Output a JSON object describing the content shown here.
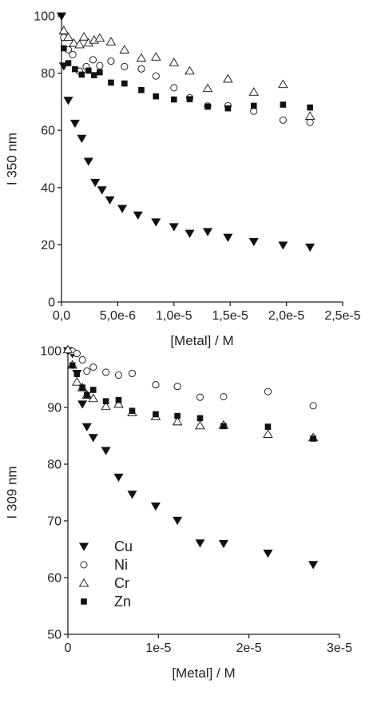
{
  "chart_data": [
    {
      "type": "scatter",
      "xlabel": "[Metal] / M",
      "ylabel": "I 350 nm",
      "xlim": [
        0,
        2.5e-05
      ],
      "ylim": [
        0,
        100
      ],
      "xticks": [
        0,
        5e-06,
        1e-05,
        1.5e-05,
        2e-05,
        2.5e-05
      ],
      "xtick_labels": [
        "0,0",
        "5,0e-6",
        "1,0e-5",
        "1,5e-5",
        "2,0e-5",
        "2,5e-5"
      ],
      "yticks": [
        0,
        20,
        40,
        60,
        80,
        100
      ],
      "ytick_labels": [
        "0",
        "20",
        "40",
        "60",
        "80",
        "100"
      ],
      "grid": false,
      "series": [
        {
          "name": "Cu",
          "marker": "triangle-down-filled",
          "color": "#111111",
          "points": [
            [
              0,
              100
            ],
            [
              2e-07,
              82.5
            ],
            [
              6e-07,
              70.5
            ],
            [
              1.2e-06,
              62.5
            ],
            [
              1.8e-06,
              57.2
            ],
            [
              2.4e-06,
              49.2
            ],
            [
              3e-06,
              41.8
            ],
            [
              3.6e-06,
              39.2
            ],
            [
              4.3e-06,
              35.7
            ],
            [
              5.4e-06,
              32.7
            ],
            [
              6.8e-06,
              30.4
            ],
            [
              8.4e-06,
              28
            ],
            [
              1e-05,
              26.3
            ],
            [
              1.14e-05,
              24
            ],
            [
              1.3e-05,
              24.6
            ],
            [
              1.48e-05,
              22.6
            ],
            [
              1.71e-05,
              21.1
            ],
            [
              1.97e-05,
              19.9
            ],
            [
              2.21e-05,
              19.2
            ]
          ]
        },
        {
          "name": "Ni",
          "marker": "circle-open",
          "color": "#111111",
          "points": [
            [
              2e-07,
              92.5
            ],
            [
              6e-07,
              88.2
            ],
            [
              1e-06,
              86.5
            ],
            [
              1.6e-06,
              80.7
            ],
            [
              2.2e-06,
              82.3
            ],
            [
              2.8e-06,
              84.7
            ],
            [
              3.4e-06,
              82.6
            ],
            [
              4.4e-06,
              84.2
            ],
            [
              5.6e-06,
              82.3
            ],
            [
              7.1e-06,
              81.5
            ],
            [
              8.4e-06,
              79
            ],
            [
              1e-05,
              74.9
            ],
            [
              1.14e-05,
              71.4
            ],
            [
              1.3e-05,
              68.5
            ],
            [
              1.48e-05,
              68.6
            ],
            [
              1.71e-05,
              66.7
            ],
            [
              1.97e-05,
              63.6
            ],
            [
              2.21e-05,
              62.8
            ]
          ]
        },
        {
          "name": "Cr",
          "marker": "triangle-up-open",
          "color": "#111111",
          "points": [
            [
              2e-07,
              94.9
            ],
            [
              6e-07,
              92.6
            ],
            [
              1.1e-06,
              90.5
            ],
            [
              1.6e-06,
              90
            ],
            [
              2e-06,
              92.7
            ],
            [
              2.4e-06,
              90.6
            ],
            [
              2.9e-06,
              91.6
            ],
            [
              3.4e-06,
              92.3
            ],
            [
              4.4e-06,
              91
            ],
            [
              5.6e-06,
              88.2
            ],
            [
              7.1e-06,
              85.3
            ],
            [
              8.4e-06,
              85.7
            ],
            [
              1e-05,
              83.7
            ],
            [
              1.14e-05,
              80.8
            ],
            [
              1.3e-05,
              74.7
            ],
            [
              1.48e-05,
              78
            ],
            [
              1.71e-05,
              73.4
            ],
            [
              1.97e-05,
              76.1
            ],
            [
              2.21e-05,
              65
            ]
          ]
        },
        {
          "name": "Zn",
          "marker": "square-filled",
          "color": "#111111",
          "points": [
            [
              2e-07,
              88.7
            ],
            [
              6e-07,
              83.5
            ],
            [
              1.2e-06,
              81.4
            ],
            [
              1.8e-06,
              79.5
            ],
            [
              2.4e-06,
              80.9
            ],
            [
              2.9e-06,
              79.3
            ],
            [
              3.4e-06,
              80.3
            ],
            [
              4.4e-06,
              76.7
            ],
            [
              5.6e-06,
              76.4
            ],
            [
              7.1e-06,
              74.1
            ],
            [
              8.4e-06,
              71.9
            ],
            [
              1e-05,
              70.8
            ],
            [
              1.14e-05,
              70.9
            ],
            [
              1.3e-05,
              68.3
            ],
            [
              1.48e-05,
              67.7
            ],
            [
              1.71e-05,
              68.6
            ],
            [
              1.97e-05,
              69
            ],
            [
              2.21e-05,
              68
            ]
          ]
        }
      ]
    },
    {
      "type": "scatter",
      "xlabel": "[Metal] / M",
      "ylabel": "I 309 nm",
      "xlim": [
        0,
        3e-05
      ],
      "ylim": [
        50,
        100
      ],
      "xticks": [
        0,
        1e-05,
        2e-05,
        3e-05
      ],
      "xtick_labels": [
        "0",
        "1e-5",
        "2e-5",
        "3e-5"
      ],
      "yticks": [
        50,
        60,
        70,
        80,
        90,
        100
      ],
      "ytick_labels": [
        "50",
        "60",
        "70",
        "80",
        "90",
        "100"
      ],
      "grid": false,
      "legend": {
        "position": "bottom-left",
        "entries": [
          {
            "label": "Cu",
            "marker": "triangle-down-filled"
          },
          {
            "label": "Ni",
            "marker": "circle-open"
          },
          {
            "label": "Cr",
            "marker": "triangle-up-open"
          },
          {
            "label": "Zn",
            "marker": "square-filled"
          }
        ]
      },
      "series": [
        {
          "name": "Cu",
          "marker": "triangle-down-filled",
          "color": "#111111",
          "points": [
            [
              0,
              100
            ],
            [
              5e-07,
              99.5
            ],
            [
              1e-06,
              96
            ],
            [
              1.6e-06,
              90.6
            ],
            [
              2.1e-06,
              86.6
            ],
            [
              2.8e-06,
              84.7
            ],
            [
              4.2e-06,
              82.4
            ],
            [
              5.6e-06,
              77.7
            ],
            [
              7.1e-06,
              74.7
            ],
            [
              9.7e-06,
              72.6
            ],
            [
              1.21e-05,
              70.1
            ],
            [
              1.46e-05,
              66.1
            ],
            [
              1.72e-05,
              66
            ],
            [
              2.21e-05,
              64.3
            ],
            [
              2.71e-05,
              62.3
            ]
          ]
        },
        {
          "name": "Ni",
          "marker": "circle-open",
          "color": "#111111",
          "points": [
            [
              0,
              100.1
            ],
            [
              5e-07,
              99.9
            ],
            [
              1e-06,
              99.5
            ],
            [
              1.6e-06,
              98.4
            ],
            [
              2.1e-06,
              96.4
            ],
            [
              2.8e-06,
              97.1
            ],
            [
              4.2e-06,
              96.2
            ],
            [
              5.6e-06,
              95.7
            ],
            [
              7.1e-06,
              96
            ],
            [
              9.7e-06,
              94
            ],
            [
              1.21e-05,
              93.7
            ],
            [
              1.46e-05,
              91.8
            ],
            [
              1.72e-05,
              91.9
            ],
            [
              2.21e-05,
              92.8
            ],
            [
              2.71e-05,
              90.3
            ]
          ]
        },
        {
          "name": "Cr",
          "marker": "triangle-up-open",
          "color": "#111111",
          "points": [
            [
              0,
              100.2
            ],
            [
              5e-07,
              97.5
            ],
            [
              1e-06,
              94.5
            ],
            [
              1.6e-06,
              93.5
            ],
            [
              2.1e-06,
              92.2
            ],
            [
              2.8e-06,
              91.6
            ],
            [
              4.2e-06,
              90.2
            ],
            [
              5.6e-06,
              90.6
            ],
            [
              7.1e-06,
              89.1
            ],
            [
              9.7e-06,
              88.4
            ],
            [
              1.21e-05,
              87.5
            ],
            [
              1.46e-05,
              86.8
            ],
            [
              1.72e-05,
              86.9
            ],
            [
              2.21e-05,
              85.3
            ],
            [
              2.71e-05,
              84.7
            ]
          ]
        },
        {
          "name": "Zn",
          "marker": "square-filled",
          "color": "#111111",
          "points": [
            [
              5e-07,
              97.4
            ],
            [
              1e-06,
              95.9
            ],
            [
              1.6e-06,
              93.5
            ],
            [
              2.1e-06,
              92.2
            ],
            [
              2.8e-06,
              93.1
            ],
            [
              4.2e-06,
              91.1
            ],
            [
              5.6e-06,
              91.3
            ],
            [
              7.1e-06,
              89.4
            ],
            [
              9.7e-06,
              88.8
            ],
            [
              1.21e-05,
              88.5
            ],
            [
              1.46e-05,
              88.1
            ],
            [
              1.72e-05,
              86.7
            ],
            [
              2.21e-05,
              86.6
            ],
            [
              2.71e-05,
              84.5
            ]
          ]
        }
      ]
    }
  ]
}
